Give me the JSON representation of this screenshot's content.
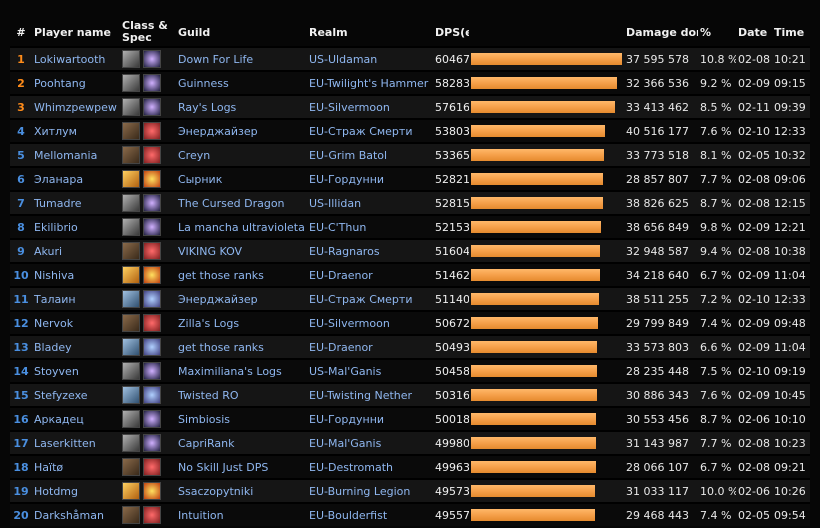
{
  "headers": {
    "rank": "#",
    "player": "Player name",
    "spec": "Class & Spec",
    "guild": "Guild",
    "realm": "Realm",
    "dps": "DPS(e)",
    "damage": "Damage done",
    "pct": "%",
    "date": "Date",
    "time": "Time"
  },
  "colors": {
    "bar": "#f5a04a",
    "rank_orange": "#ff8c1a",
    "rank_blue": "#4a8fe0",
    "link": "#8fb7f0"
  },
  "rows": [
    {
      "rank": "1",
      "name": "Lokiwartooth",
      "cls": "dk",
      "spec": "unholy",
      "guild": "Down For Life",
      "realm": "US-Uldaman",
      "dps": "60467",
      "dmg": "37 595 578",
      "pct": "10.8 %",
      "date": "02-08",
      "time": "10:21",
      "bar": 1.0
    },
    {
      "rank": "2",
      "name": "Poohtang",
      "cls": "dk",
      "spec": "unholy",
      "guild": "Guinness",
      "realm": "EU-Twilight's Hammer",
      "dps": "58283",
      "dmg": "32 366 536",
      "pct": "9.2 %",
      "date": "02-09",
      "time": "09:15",
      "bar": 0.9639
    },
    {
      "rank": "3",
      "name": "Whimzpewpew",
      "cls": "dk",
      "spec": "unholy",
      "guild": "Ray's Logs",
      "realm": "EU-Silvermoon",
      "dps": "57616",
      "dmg": "33 413 462",
      "pct": "8.5 %",
      "date": "02-11",
      "time": "09:39",
      "bar": 0.9528
    },
    {
      "rank": "4",
      "name": "Хитлум",
      "cls": "warrior",
      "spec": "fury",
      "guild": "Энерджайзер",
      "realm": "EU-Страж Смерти",
      "dps": "53803",
      "dmg": "40 516 177",
      "pct": "7.6 %",
      "date": "02-10",
      "time": "12:33",
      "bar": 0.8898
    },
    {
      "rank": "5",
      "name": "Mellomania",
      "cls": "warrior",
      "spec": "fury",
      "guild": "Creyn",
      "realm": "EU-Grim Batol",
      "dps": "53365",
      "dmg": "33 773 518",
      "pct": "8.1 %",
      "date": "02-05",
      "time": "10:32",
      "bar": 0.8825
    },
    {
      "rank": "6",
      "name": "Эланара",
      "cls": "rogue",
      "spec": "fire",
      "guild": "Сырник",
      "realm": "EU-Гордунни",
      "dps": "52821",
      "dmg": "28 857 807",
      "pct": "7.7 %",
      "date": "02-08",
      "time": "09:06",
      "bar": 0.8736
    },
    {
      "rank": "7",
      "name": "Tumadre",
      "cls": "dk",
      "spec": "unholy",
      "guild": "The Cursed Dragon",
      "realm": "US-Illidan",
      "dps": "52815",
      "dmg": "38 826 625",
      "pct": "8.7 %",
      "date": "02-08",
      "time": "12:15",
      "bar": 0.8735
    },
    {
      "rank": "8",
      "name": "Ekilibrio",
      "cls": "dk",
      "spec": "unholy",
      "guild": "La mancha ultravioleta",
      "realm": "EU-C'Thun",
      "dps": "52153",
      "dmg": "38 656 849",
      "pct": "9.8 %",
      "date": "02-09",
      "time": "12:21",
      "bar": 0.8625
    },
    {
      "rank": "9",
      "name": "Akuri",
      "cls": "warrior",
      "spec": "fury",
      "guild": "VIKING KOV",
      "realm": "EU-Ragnaros",
      "dps": "51604",
      "dmg": "32 948 587",
      "pct": "9.4 %",
      "date": "02-08",
      "time": "10:38",
      "bar": 0.8534
    },
    {
      "rank": "10",
      "name": "Nishiva",
      "cls": "rogue",
      "spec": "fire",
      "guild": "get those ranks",
      "realm": "EU-Draenor",
      "dps": "51462",
      "dmg": "34 218 640",
      "pct": "6.7 %",
      "date": "02-09",
      "time": "11:04",
      "bar": 0.8511
    },
    {
      "rank": "11",
      "name": "Талаин",
      "cls": "mage",
      "spec": "arcane",
      "guild": "Энерджайзер",
      "realm": "EU-Страж Смерти",
      "dps": "51140",
      "dmg": "38 511 255",
      "pct": "7.2 %",
      "date": "02-10",
      "time": "12:33",
      "bar": 0.8458
    },
    {
      "rank": "12",
      "name": "Nervok",
      "cls": "warrior",
      "spec": "fury",
      "guild": "Zilla's Logs",
      "realm": "EU-Silvermoon",
      "dps": "50672",
      "dmg": "29 799 849",
      "pct": "7.4 %",
      "date": "02-09",
      "time": "09:48",
      "bar": 0.838
    },
    {
      "rank": "13",
      "name": "Bladey",
      "cls": "mage",
      "spec": "arcane",
      "guild": "get those ranks",
      "realm": "EU-Draenor",
      "dps": "50493",
      "dmg": "33 573 803",
      "pct": "6.6 %",
      "date": "02-09",
      "time": "11:04",
      "bar": 0.835
    },
    {
      "rank": "14",
      "name": "Stoyven",
      "cls": "dk",
      "spec": "unholy",
      "guild": "Maximiliana's Logs",
      "realm": "US-Mal'Ganis",
      "dps": "50458",
      "dmg": "28 235 448",
      "pct": "7.5 %",
      "date": "02-10",
      "time": "09:19",
      "bar": 0.8345
    },
    {
      "rank": "15",
      "name": "Stefyzexe",
      "cls": "mage",
      "spec": "arcane",
      "guild": "Twisted RO",
      "realm": "EU-Twisting Nether",
      "dps": "50316",
      "dmg": "30 886 343",
      "pct": "7.6 %",
      "date": "02-09",
      "time": "10:45",
      "bar": 0.8321
    },
    {
      "rank": "16",
      "name": "Аркадец",
      "cls": "dk",
      "spec": "unholy",
      "guild": "Simbiosis",
      "realm": "EU-Гордунни",
      "dps": "50018",
      "dmg": "30 553 456",
      "pct": "8.7 %",
      "date": "02-06",
      "time": "10:10",
      "bar": 0.8272
    },
    {
      "rank": "17",
      "name": "Laserkitten",
      "cls": "dk",
      "spec": "unholy",
      "guild": "CapriRank",
      "realm": "EU-Mal'Ganis",
      "dps": "49980",
      "dmg": "31 143 987",
      "pct": "7.7 %",
      "date": "02-08",
      "time": "10:23",
      "bar": 0.8266
    },
    {
      "rank": "18",
      "name": "Haïtø",
      "cls": "warrior",
      "spec": "fury",
      "guild": "No Skill Just DPS",
      "realm": "EU-Destromath",
      "dps": "49963",
      "dmg": "28 066 107",
      "pct": "6.7 %",
      "date": "02-08",
      "time": "09:21",
      "bar": 0.8263
    },
    {
      "rank": "19",
      "name": "Hotdmg",
      "cls": "rogue",
      "spec": "fire",
      "guild": "Ssaczopytniki",
      "realm": "EU-Burning Legion",
      "dps": "49573",
      "dmg": "31 033 117",
      "pct": "10.0 %",
      "date": "02-06",
      "time": "10:26",
      "bar": 0.8198
    },
    {
      "rank": "20",
      "name": "Darkshåman",
      "cls": "warrior",
      "spec": "fury",
      "guild": "Intuition",
      "realm": "EU-Boulderfist",
      "dps": "49557",
      "dmg": "29 468 443",
      "pct": "7.4 %",
      "date": "02-05",
      "time": "09:54",
      "bar": 0.8196
    }
  ]
}
